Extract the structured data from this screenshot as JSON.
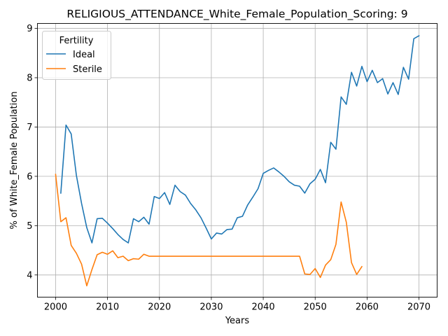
{
  "chart_data": {
    "type": "line",
    "title": "RELIGIOUS_ATTENDANCE_White_Female_Population_Scoring: 9",
    "xlabel": "Years",
    "ylabel": "% of White_Female Population",
    "xlim": [
      1996.5,
      2073.5
    ],
    "ylim": [
      3.55,
      9.1
    ],
    "xticks": [
      2000,
      2010,
      2020,
      2030,
      2040,
      2050,
      2060,
      2070
    ],
    "yticks": [
      4,
      5,
      6,
      7,
      8,
      9
    ],
    "grid": true,
    "legend": {
      "title": "Fertility",
      "position": "top-left"
    },
    "series": [
      {
        "name": "Ideal",
        "color": "#1f77b4",
        "x": [
          2001,
          2002,
          2003,
          2004,
          2005,
          2006,
          2007,
          2008,
          2009,
          2010,
          2011,
          2012,
          2013,
          2014,
          2015,
          2016,
          2017,
          2018,
          2019,
          2020,
          2021,
          2022,
          2023,
          2024,
          2025,
          2026,
          2027,
          2028,
          2029,
          2030,
          2031,
          2032,
          2033,
          2034,
          2035,
          2036,
          2037,
          2038,
          2039,
          2040,
          2041,
          2042,
          2043,
          2044,
          2045,
          2046,
          2047,
          2048,
          2049,
          2050,
          2051,
          2052,
          2053,
          2054,
          2055,
          2056,
          2057,
          2058,
          2059,
          2060,
          2061,
          2062,
          2063,
          2064,
          2065,
          2066,
          2067,
          2068,
          2069,
          2070
        ],
        "values": [
          5.66,
          7.04,
          6.86,
          6.02,
          5.45,
          4.96,
          4.65,
          5.14,
          5.15,
          5.05,
          4.94,
          4.82,
          4.72,
          4.65,
          5.14,
          5.08,
          5.17,
          5.03,
          5.59,
          5.55,
          5.67,
          5.43,
          5.82,
          5.69,
          5.62,
          5.45,
          5.32,
          5.16,
          4.95,
          4.73,
          4.85,
          4.83,
          4.92,
          4.93,
          5.16,
          5.19,
          5.42,
          5.58,
          5.75,
          6.06,
          6.12,
          6.17,
          6.09,
          6.0,
          5.89,
          5.82,
          5.8,
          5.66,
          5.85,
          5.94,
          6.14,
          5.87,
          6.69,
          6.55,
          7.61,
          7.46,
          8.11,
          7.83,
          8.23,
          7.92,
          8.15,
          7.9,
          7.98,
          7.67,
          7.9,
          7.66,
          8.21,
          7.97,
          8.79,
          8.85
        ]
      },
      {
        "name": "Sterile",
        "color": "#ff7f0e",
        "x": [
          2000,
          2001,
          2002,
          2003,
          2004,
          2005,
          2006,
          2007,
          2008,
          2009,
          2010,
          2011,
          2012,
          2013,
          2014,
          2015,
          2016,
          2017,
          2018,
          2019,
          2020,
          2021,
          2022,
          2023,
          2024,
          2025,
          2026,
          2027,
          2028,
          2029,
          2030,
          2031,
          2032,
          2033,
          2034,
          2035,
          2036,
          2037,
          2038,
          2039,
          2040,
          2041,
          2042,
          2043,
          2044,
          2045,
          2046,
          2047,
          2048,
          2049,
          2050,
          2051,
          2052,
          2053,
          2054,
          2055,
          2056,
          2057,
          2058,
          2059
        ],
        "values": [
          6.04,
          5.08,
          5.16,
          4.6,
          4.44,
          4.22,
          3.78,
          4.11,
          4.41,
          4.46,
          4.42,
          4.49,
          4.35,
          4.38,
          4.29,
          4.33,
          4.32,
          4.42,
          4.38,
          4.38,
          4.38,
          4.38,
          4.38,
          4.38,
          4.38,
          4.38,
          4.38,
          4.38,
          4.38,
          4.38,
          4.38,
          4.38,
          4.38,
          4.38,
          4.38,
          4.38,
          4.38,
          4.38,
          4.38,
          4.38,
          4.38,
          4.38,
          4.38,
          4.38,
          4.38,
          4.38,
          4.38,
          4.38,
          4.02,
          4.01,
          4.13,
          3.95,
          4.2,
          4.31,
          4.62,
          5.48,
          5.07,
          4.25,
          4.01,
          4.17
        ]
      }
    ]
  }
}
